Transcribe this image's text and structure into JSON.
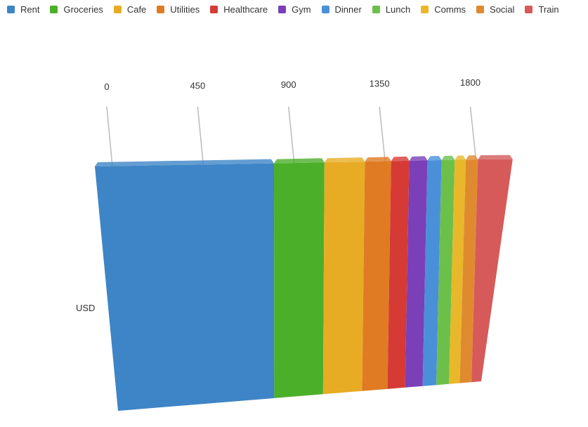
{
  "chart_data": {
    "type": "bar",
    "orientation": "horizontal",
    "stacked": true,
    "three_d": true,
    "categories": [
      "USD"
    ],
    "series": [
      {
        "name": "Rent",
        "values": [
          800
        ],
        "color": "#3d85c6"
      },
      {
        "name": "Groceries",
        "values": [
          250
        ],
        "color": "#4caf2a"
      },
      {
        "name": "Cafe",
        "values": [
          200
        ],
        "color": "#e8ac24"
      },
      {
        "name": "Utilities",
        "values": [
          130
        ],
        "color": "#e07b24"
      },
      {
        "name": "Healthcare",
        "values": [
          90
        ],
        "color": "#d63a35"
      },
      {
        "name": "Gym",
        "values": [
          90
        ],
        "color": "#7b3fb8"
      },
      {
        "name": "Dinner",
        "values": [
          70
        ],
        "color": "#4a90d9"
      },
      {
        "name": "Lunch",
        "values": [
          65
        ],
        "color": "#6cc04a"
      },
      {
        "name": "Comms",
        "values": [
          55
        ],
        "color": "#e8b82a"
      },
      {
        "name": "Social",
        "values": [
          60
        ],
        "color": "#e08a30"
      },
      {
        "name": "Train",
        "values": [
          50
        ],
        "color": "#d65a5a"
      }
    ],
    "xticks": [
      0,
      450,
      900,
      1350,
      1800
    ],
    "xlim": [
      0,
      1800
    ],
    "legend": "top",
    "grid": false
  }
}
